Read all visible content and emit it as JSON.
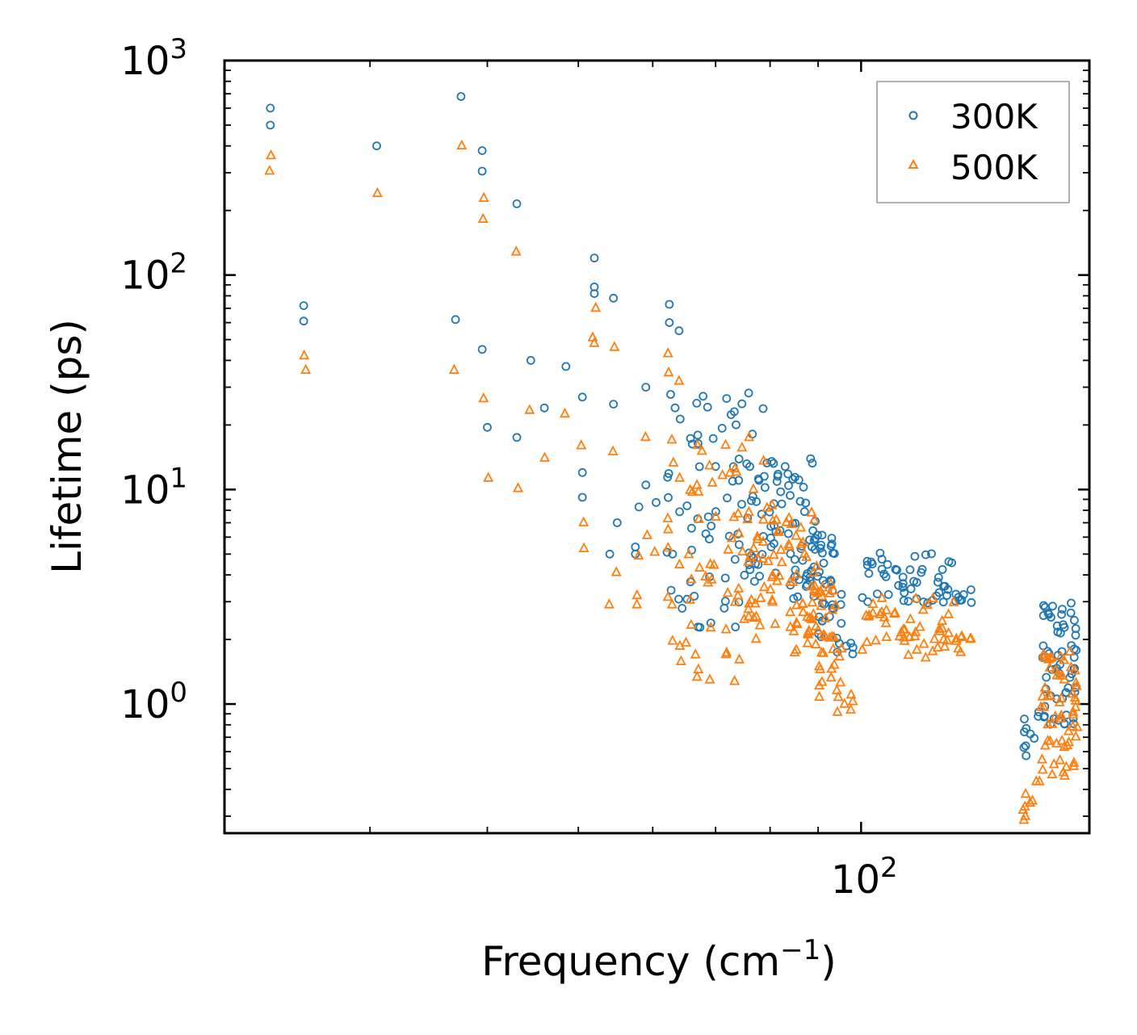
{
  "chart_data": {
    "type": "scatter",
    "title": "",
    "xlabel": "Frequency (cm",
    "xlabel_sup": "−1",
    "xlabel_close": ")",
    "ylabel": "Lifetime (ps)",
    "xscale": "log",
    "yscale": "log",
    "xlim": [
      21,
      175
    ],
    "ylim": [
      0.25,
      1000
    ],
    "x_tick_labels": [
      {
        "value": 100,
        "base": "10",
        "exp": "2"
      }
    ],
    "y_tick_labels": [
      {
        "value": 1,
        "base": "10",
        "exp": "0"
      },
      {
        "value": 10,
        "base": "10",
        "exp": "1"
      },
      {
        "value": 100,
        "base": "10",
        "exp": "2"
      },
      {
        "value": 1000,
        "base": "10",
        "exp": "3"
      }
    ],
    "legend_position": "top-right",
    "series": [
      {
        "name": "300K",
        "marker": "circle",
        "color": "#1f77b4"
      },
      {
        "name": "500K",
        "marker": "triangle",
        "color": "#ff7f0e"
      }
    ],
    "generated_points": "approximated from visible clusters; 300K/500K pairs share frequencies"
  }
}
